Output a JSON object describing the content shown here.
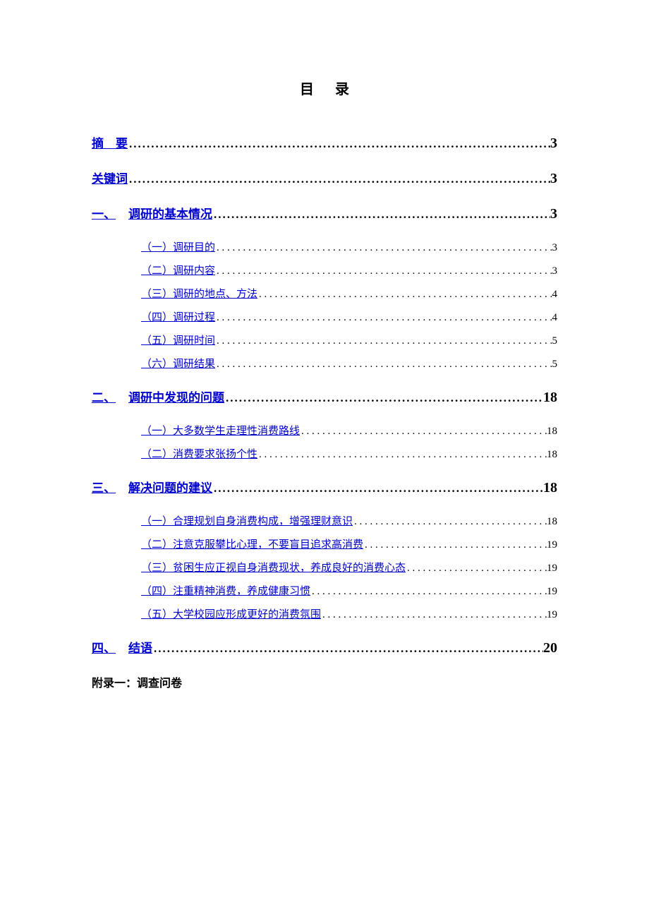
{
  "title": "目录",
  "entries": [
    {
      "level": 1,
      "prefix": "",
      "label": "摘　要",
      "page": "3"
    },
    {
      "level": 1,
      "prefix": "",
      "label": "关键词",
      "page": "3"
    },
    {
      "level": 1,
      "prefix": "一、",
      "label": "调研的基本情况",
      "page": "3"
    },
    {
      "level": 2,
      "prefix": "",
      "label": "（一）调研目的",
      "page": "3"
    },
    {
      "level": 2,
      "prefix": "",
      "label": "（二）调研内容",
      "page": "3"
    },
    {
      "level": 2,
      "prefix": "",
      "label": "（三）调研的地点、方法",
      "page": "4"
    },
    {
      "level": 2,
      "prefix": "",
      "label": "（四）调研过程",
      "page": "4"
    },
    {
      "level": 2,
      "prefix": "",
      "label": "（五）调研时间",
      "page": "5"
    },
    {
      "level": 2,
      "prefix": "",
      "label": "（六）调研结果",
      "page": "5"
    },
    {
      "level": 1,
      "prefix": "二、",
      "label": "调研中发现的问题",
      "page": "18"
    },
    {
      "level": 2,
      "prefix": "",
      "label": "（一）大多数学生走理性消费路线",
      "page": "18"
    },
    {
      "level": 2,
      "prefix": "",
      "label": "（二）消费要求张扬个性",
      "page": "18"
    },
    {
      "level": 1,
      "prefix": "三、",
      "label": "解决问题的建议",
      "page": "18"
    },
    {
      "level": 2,
      "prefix": "",
      "label": "（一）合理规划自身消费构成，增强理财意识",
      "page": "18"
    },
    {
      "level": 2,
      "prefix": "",
      "label": "（二）注意克服攀比心理，不要盲目追求高消费",
      "page": "19"
    },
    {
      "level": 2,
      "prefix": "",
      "label": "（三）贫困生应正视自身消费现状，养成良好的消费心态",
      "page": "19"
    },
    {
      "level": 2,
      "prefix": "",
      "label": "（四）注重精神消费，养成健康习惯",
      "page": "19"
    },
    {
      "level": 2,
      "prefix": "",
      "label": "（五）大学校园应形成更好的消费氛围",
      "page": "19"
    },
    {
      "level": 1,
      "prefix": "四、",
      "label": "结语",
      "page": "20"
    }
  ],
  "appendix": "附录一：调查问卷"
}
